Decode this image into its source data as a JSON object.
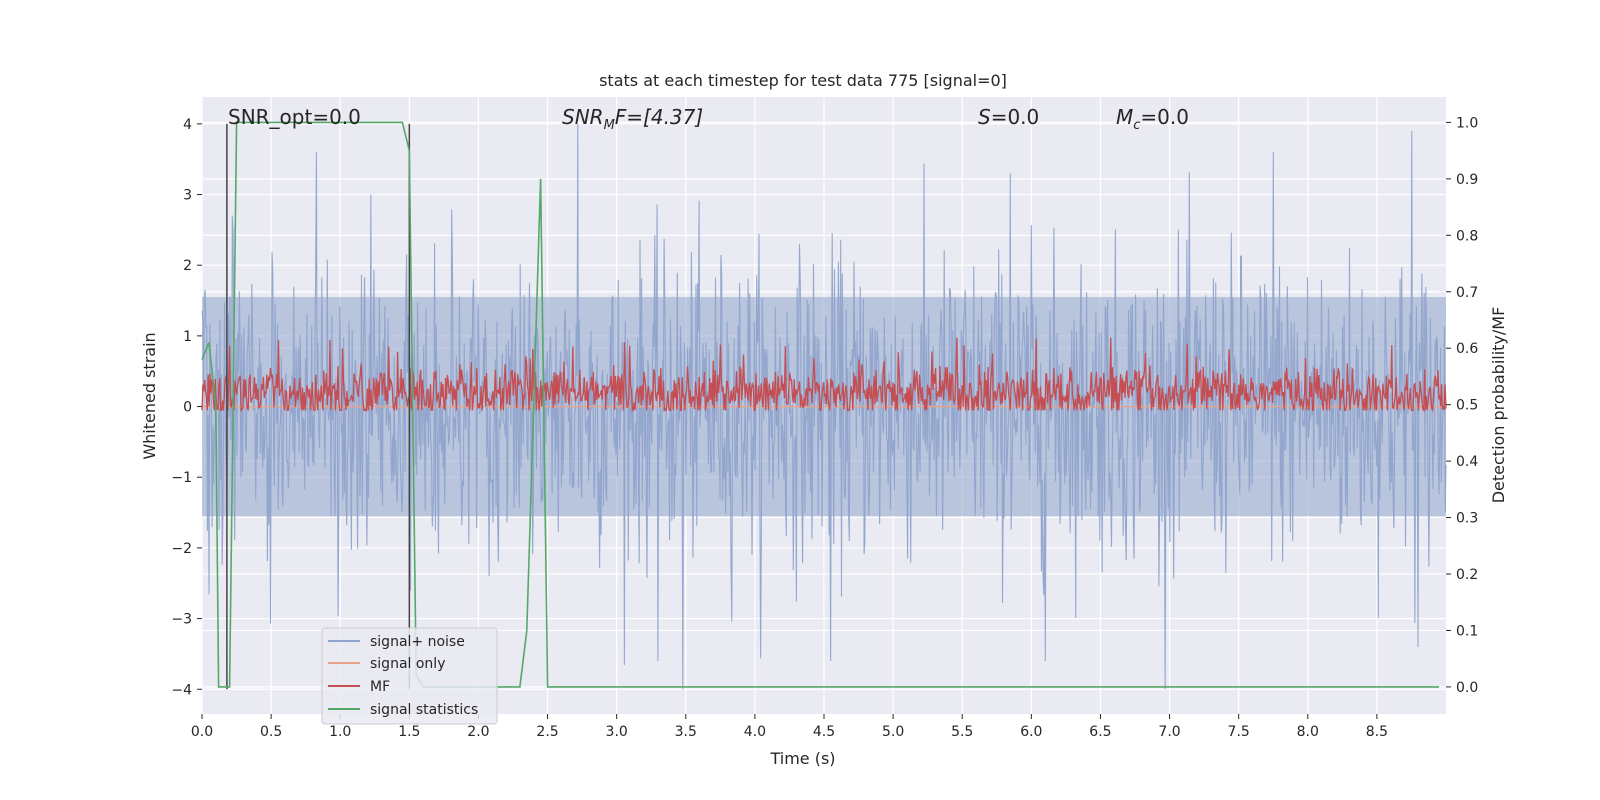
{
  "chart_data": {
    "type": "line",
    "title": "stats at each timestep for test data 775 [signal=0]",
    "xlabel": "Time (s)",
    "ylabel": "Whitened strain",
    "ylabel_right": "Detection probability/MF",
    "xlim": [
      0.0,
      9.0
    ],
    "ylim": [
      -4.35,
      4.38
    ],
    "ylim_right": [
      -0.048,
      1.045
    ],
    "x_ticks": [
      0.0,
      0.5,
      1.0,
      1.5,
      2.0,
      2.5,
      3.0,
      3.5,
      4.0,
      4.5,
      5.0,
      5.5,
      6.0,
      6.5,
      7.0,
      7.5,
      8.0,
      8.5
    ],
    "x_tick_labels": [
      "0.0",
      "0.5",
      "1.0",
      "1.5",
      "2.0",
      "2.5",
      "3.0",
      "3.5",
      "4.0",
      "4.5",
      "5.0",
      "5.5",
      "6.0",
      "6.5",
      "7.0",
      "7.5",
      "8.0",
      "8.5"
    ],
    "y_ticks": [
      4,
      3,
      2,
      1,
      0,
      -1,
      -2,
      -3,
      -4
    ],
    "y_tick_labels": [
      "4",
      "3",
      "2",
      "1",
      "0",
      "−1",
      "−2",
      "−3",
      "−4"
    ],
    "y_ticks_right": [
      1.0,
      0.9,
      0.8,
      0.7,
      0.6,
      0.5,
      0.4,
      0.3,
      0.2,
      0.1,
      0.0
    ],
    "y_tick_labels_right": [
      "1.0",
      "0.9",
      "0.8",
      "0.7",
      "0.6",
      "0.5",
      "0.4",
      "0.3",
      "0.2",
      "0.1",
      "0.0"
    ],
    "grid": true,
    "legend_placement": "lower-left",
    "annotations": {
      "snr_opt": "SNR_opt=0.0",
      "snr_mf_sym": "SNR",
      "snr_mf_sub": "M",
      "snr_mf_rest": "F=[4.37]",
      "s_sym": "S",
      "s_rest": "=0.0",
      "mc_sym": "M",
      "mc_sub": "c",
      "mc_rest": "=0.0"
    },
    "vlines_x": [
      0.18,
      1.5
    ],
    "series": [
      {
        "name": "signal+ noise",
        "color": "#8fa4cc",
        "axis": "left",
        "x_range": [
          0.0,
          9.0
        ],
        "amplitude_envelope": [
          -4.0,
          4.0
        ],
        "notable_peaks": [
          [
            0.22,
            2.7
          ],
          [
            0.83,
            3.6
          ],
          [
            1.22,
            3.0
          ],
          [
            2.72,
            4.0
          ],
          [
            3.3,
            -3.6
          ],
          [
            3.48,
            -4.0
          ],
          [
            4.55,
            -3.6
          ],
          [
            5.85,
            3.3
          ],
          [
            6.1,
            -3.6
          ],
          [
            7.75,
            3.6
          ],
          [
            8.75,
            3.9
          ],
          [
            8.8,
            -3.4
          ]
        ]
      },
      {
        "name": "signal only",
        "color": "#e8a488",
        "axis": "left",
        "x_range": [
          0.0,
          9.0
        ],
        "values_constant": 0.0
      },
      {
        "name": "MF",
        "color": "#c44e52",
        "axis": "right",
        "x_range": [
          0.0,
          9.0
        ],
        "baseline": 0.52,
        "spread": 0.05,
        "max": 0.62,
        "min": 0.49
      },
      {
        "name": "signal statistics",
        "color": "#55a868",
        "axis": "right",
        "x": [
          0.0,
          0.05,
          0.1,
          0.12,
          0.2,
          0.25,
          0.3,
          0.5,
          1.0,
          1.45,
          1.5,
          1.55,
          1.6,
          2.0,
          2.3,
          2.35,
          2.45,
          2.5,
          2.55,
          3.0,
          5.0,
          7.0,
          8.95
        ],
        "values": [
          0.58,
          0.61,
          0.5,
          0.0,
          0.0,
          1.0,
          1.0,
          1.0,
          1.0,
          1.0,
          0.95,
          0.02,
          0.0,
          0.0,
          0.0,
          0.1,
          0.9,
          0.0,
          0.0,
          0.0,
          0.0,
          0.0,
          0.0
        ]
      }
    ]
  }
}
